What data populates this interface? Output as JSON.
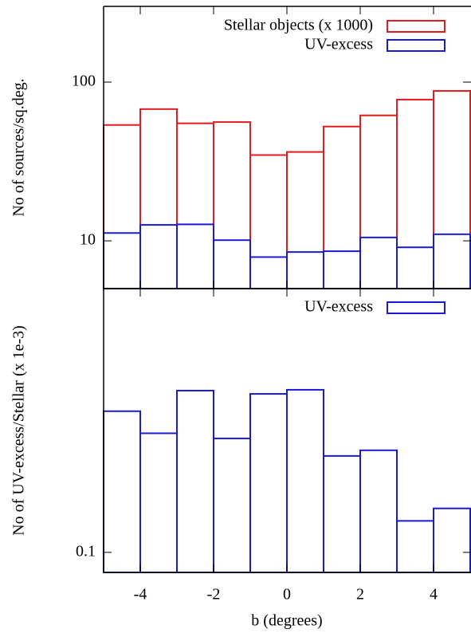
{
  "chart_data": [
    {
      "type": "histogram",
      "ylabel": "No of sources/sq.deg.",
      "log_y": true,
      "bins": [
        -5,
        -4,
        -3,
        -2,
        -1,
        0,
        1,
        2,
        3,
        4,
        5
      ],
      "series": [
        {
          "name": "Stellar objects (x 1000)",
          "color": "#e41a1c",
          "values": [
            53.7,
            67.6,
            55,
            56,
            34.7,
            36.3,
            52.5,
            61.7,
            77.6,
            88
          ]
        },
        {
          "name": "UV-excess",
          "color": "#1a1ad6",
          "values": [
            11.2,
            12.6,
            12.7,
            10.1,
            7.9,
            8.5,
            8.6,
            10.5,
            9.1,
            11.0
          ]
        }
      ],
      "xlim": [
        -5,
        5
      ],
      "xticks": [
        -4,
        -2,
        0,
        2,
        4
      ],
      "xtick_labels": false,
      "ylim": [
        5,
        300
      ],
      "yticks": [
        10,
        100
      ],
      "legend": "top-right"
    },
    {
      "type": "histogram",
      "xlabel": "b (degrees)",
      "ylabel": "No of UV-excess/Stellar (x 1e-3)",
      "log_y": true,
      "bins": [
        -5,
        -4,
        -3,
        -2,
        -1,
        0,
        1,
        2,
        3,
        4,
        5
      ],
      "series": [
        {
          "name": "UV-excess",
          "color": "#1a1ad6",
          "values": [
            0.21,
            0.187,
            0.234,
            0.182,
            0.23,
            0.235,
            0.166,
            0.171,
            0.118,
            0.126
          ]
        }
      ],
      "xlim": [
        -5,
        5
      ],
      "xticks": [
        -4,
        -2,
        0,
        2,
        4
      ],
      "xtick_labels": true,
      "ylim": [
        0.09,
        0.4
      ],
      "yticks": [
        0.1
      ],
      "legend": "top-right"
    }
  ]
}
